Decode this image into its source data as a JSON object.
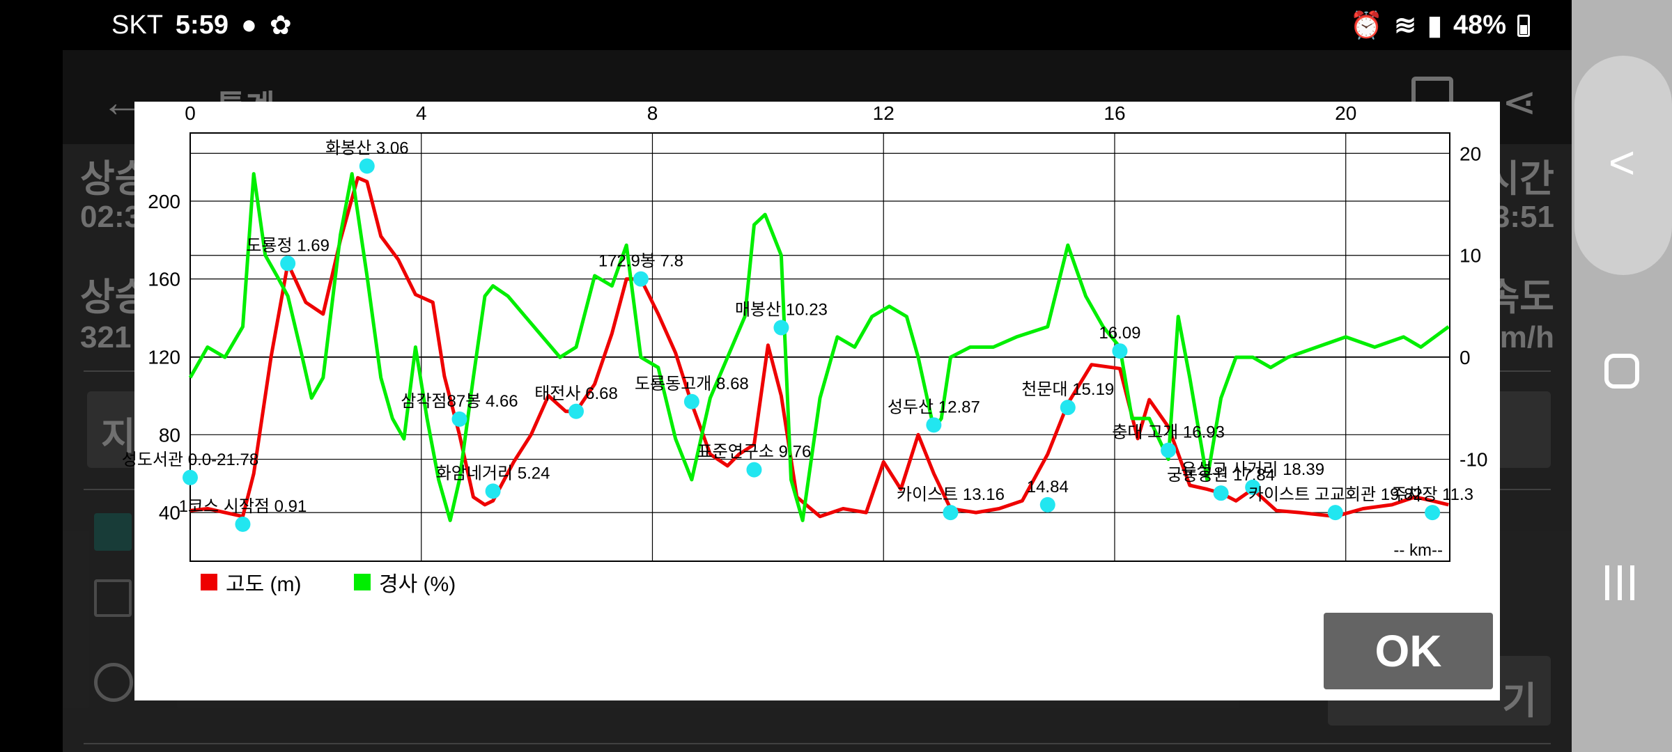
{
  "status_bar": {
    "carrier": "SKT",
    "time": "5:59",
    "battery": "48%",
    "icons": [
      "message-icon",
      "running-icon",
      "alarm-icon",
      "wifi-icon",
      "signal-icon",
      "battery-icon"
    ]
  },
  "background_app": {
    "title": "통계",
    "stat_left_top_label": "상승",
    "stat_left_top_value": "02:3",
    "stat_left_bottom_label": "상승",
    "stat_left_bottom_value": "321",
    "stat_right_top_label": "시간",
    "stat_right_top_value": "3:51",
    "stat_right_bottom_label": "속도",
    "stat_right_bottom_value": "m/h",
    "row_label": "지",
    "bottom_button": "기"
  },
  "dialog": {
    "ok_label": "OK",
    "km_label": "-- km--",
    "legend": [
      {
        "label": "고도 (m)",
        "color": "#ee0000"
      },
      {
        "label": "경사 (%)",
        "color": "#00ee00"
      }
    ]
  },
  "chart_data": {
    "type": "line",
    "x_ticks": [
      "0",
      "4",
      "8",
      "12",
      "16",
      "20"
    ],
    "y_left_ticks": [
      "200",
      "160",
      "120",
      "80",
      "40"
    ],
    "y_right_ticks": [
      "20",
      "10",
      "0",
      "-10"
    ],
    "xlim": [
      0,
      21.8
    ],
    "ylim_left": [
      15,
      235
    ],
    "ylim_right": [
      -20,
      22
    ],
    "grid": true,
    "xlabel": "-- km--",
    "series": [
      {
        "name": "고도 (m)",
        "color": "#ee0000",
        "axis": "left",
        "x": [
          0.0,
          0.3,
          0.6,
          0.91,
          1.1,
          1.4,
          1.69,
          2.0,
          2.3,
          2.6,
          2.9,
          3.06,
          3.3,
          3.6,
          3.9,
          4.2,
          4.4,
          4.66,
          4.9,
          5.1,
          5.24,
          5.6,
          5.9,
          6.2,
          6.5,
          6.68,
          7.0,
          7.3,
          7.55,
          7.8,
          8.1,
          8.4,
          8.68,
          9.0,
          9.3,
          9.5,
          9.76,
          10.0,
          10.23,
          10.5,
          10.9,
          11.3,
          11.7,
          12.0,
          12.3,
          12.6,
          12.87,
          13.16,
          13.6,
          14.0,
          14.4,
          14.84,
          15.19,
          15.6,
          16.09,
          16.4,
          16.6,
          16.93,
          17.3,
          17.6,
          17.84,
          18.1,
          18.39,
          18.8,
          19.2,
          19.82,
          20.3,
          20.8,
          21.2,
          21.5,
          21.78
        ],
        "values": [
          41,
          42,
          40,
          38,
          60,
          120,
          168,
          148,
          142,
          180,
          212,
          210,
          182,
          170,
          152,
          148,
          110,
          80,
          48,
          44,
          46,
          66,
          80,
          100,
          92,
          92,
          106,
          132,
          160,
          160,
          142,
          122,
          96,
          70,
          64,
          70,
          75,
          126,
          100,
          48,
          38,
          42,
          40,
          66,
          52,
          80,
          60,
          42,
          40,
          42,
          46,
          70,
          96,
          116,
          114,
          78,
          98,
          84,
          54,
          52,
          50,
          46,
          52,
          41,
          40,
          38,
          42,
          44,
          48,
          46,
          44
        ]
      },
      {
        "name": "경사 (%)",
        "color": "#00ee00",
        "axis": "right",
        "x": [
          0.0,
          0.3,
          0.6,
          0.91,
          1.1,
          1.3,
          1.5,
          1.69,
          1.9,
          2.1,
          2.3,
          2.6,
          2.8,
          3.06,
          3.3,
          3.5,
          3.7,
          3.9,
          4.1,
          4.3,
          4.5,
          4.66,
          4.9,
          5.1,
          5.24,
          5.5,
          5.8,
          6.1,
          6.4,
          6.68,
          7.0,
          7.3,
          7.55,
          7.8,
          8.1,
          8.4,
          8.68,
          9.0,
          9.3,
          9.6,
          9.76,
          9.95,
          10.23,
          10.4,
          10.6,
          10.9,
          11.2,
          11.5,
          11.8,
          12.1,
          12.4,
          12.6,
          12.87,
          13.0,
          13.16,
          13.5,
          13.9,
          14.3,
          14.84,
          15.19,
          15.5,
          15.8,
          16.09,
          16.3,
          16.6,
          16.93,
          17.1,
          17.3,
          17.6,
          17.84,
          18.1,
          18.39,
          18.7,
          19.0,
          19.5,
          20.0,
          20.5,
          21.0,
          21.3,
          21.78
        ],
        "values": [
          -2,
          1,
          0,
          3,
          18,
          10,
          8,
          6,
          1,
          -4,
          -2,
          12,
          18,
          8,
          -2,
          -6,
          -8,
          1,
          -6,
          -12,
          -16,
          -12,
          -2,
          6,
          7,
          6,
          4,
          2,
          0,
          1,
          8,
          7,
          11,
          0,
          -1,
          -8,
          -12,
          -4,
          0,
          4,
          13,
          14,
          10,
          -12,
          -16,
          -4,
          2,
          1,
          4,
          5,
          4,
          0,
          -7,
          -6,
          0,
          1,
          1,
          2,
          3,
          11,
          6,
          3,
          1,
          -6,
          -6,
          -10,
          4,
          -2,
          -12,
          -4,
          0,
          0,
          -1,
          0,
          1,
          2,
          1,
          2,
          1,
          3
        ]
      }
    ],
    "points": [
      {
        "label": "성도서관 0.0-21.78",
        "x": 0.0,
        "y": 58
      },
      {
        "label": "1코스 시작점 0.91",
        "x": 0.91,
        "y": 34
      },
      {
        "label": "도룡정 1.69",
        "x": 1.69,
        "y": 168
      },
      {
        "label": "화봉산 3.06",
        "x": 3.06,
        "y": 218
      },
      {
        "label": "삼각점87봉 4.66",
        "x": 4.66,
        "y": 88
      },
      {
        "label": "화암네거리 5.24",
        "x": 5.24,
        "y": 51
      },
      {
        "label": "태전사 6.68",
        "x": 6.68,
        "y": 92
      },
      {
        "label": "172.9봉 7.8",
        "x": 7.8,
        "y": 160
      },
      {
        "label": "도룡동고개 8.68",
        "x": 8.68,
        "y": 97
      },
      {
        "label": "표준연구소 9.76",
        "x": 9.76,
        "y": 62
      },
      {
        "label": "매봉산 10.23",
        "x": 10.23,
        "y": 135
      },
      {
        "label": "성두산 12.87",
        "x": 12.87,
        "y": 85
      },
      {
        "label": "카이스트 13.16",
        "x": 13.16,
        "y": 40
      },
      {
        "label": "14.84",
        "x": 14.84,
        "y": 44
      },
      {
        "label": "천문대 15.19",
        "x": 15.19,
        "y": 94
      },
      {
        "label": "16.09",
        "x": 16.09,
        "y": 123
      },
      {
        "label": "충대 고개 16.93",
        "x": 16.93,
        "y": 72
      },
      {
        "label": "궁동공원 17.84",
        "x": 17.84,
        "y": 50
      },
      {
        "label": "유성고 사거리 18.39",
        "x": 18.39,
        "y": 53
      },
      {
        "label": "카이스트 고교회관 19.82",
        "x": 19.82,
        "y": 40
      },
      {
        "label": "주차장 11.3",
        "x": 21.5,
        "y": 40
      }
    ]
  }
}
